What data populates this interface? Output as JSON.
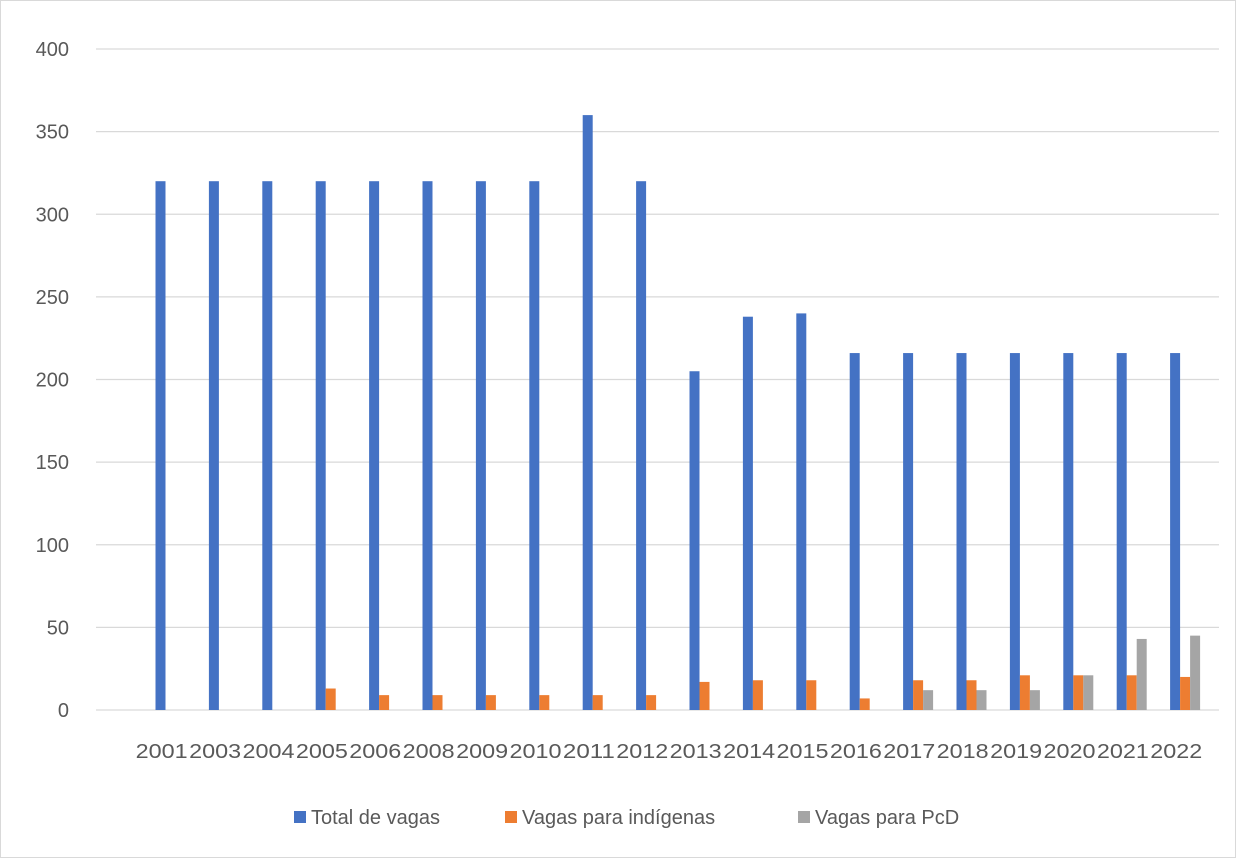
{
  "chart_data": {
    "type": "bar",
    "title": "",
    "xlabel": "",
    "ylabel": "",
    "ylim": [
      0,
      400
    ],
    "yticks": [
      0,
      50,
      100,
      150,
      200,
      250,
      300,
      350,
      400
    ],
    "grid": true,
    "legend_position": "bottom",
    "categories": [
      "2001",
      "2003",
      "2004",
      "2005",
      "2006",
      "2008",
      "2009",
      "2010",
      "2011",
      "2012",
      "2013",
      "2014",
      "2015",
      "2016",
      "2017",
      "2018",
      "2019",
      "2020",
      "2021",
      "2022"
    ],
    "series": [
      {
        "name": "Total de vagas",
        "color": "#4472c4",
        "values": [
          320,
          320,
          320,
          320,
          320,
          320,
          320,
          320,
          360,
          320,
          205,
          238,
          240,
          216,
          216,
          216,
          216,
          216,
          216,
          216
        ]
      },
      {
        "name": "Vagas para indígenas",
        "color": "#ed7d31",
        "values": [
          0,
          0,
          0,
          13,
          9,
          9,
          9,
          9,
          9,
          9,
          17,
          18,
          18,
          7,
          18,
          18,
          21,
          21,
          21,
          20
        ]
      },
      {
        "name": "Vagas para PcD",
        "color": "#a5a5a5",
        "values": [
          0,
          0,
          0,
          0,
          0,
          0,
          0,
          0,
          0,
          0,
          0,
          0,
          0,
          0,
          12,
          12,
          12,
          21,
          43,
          45
        ]
      }
    ]
  }
}
